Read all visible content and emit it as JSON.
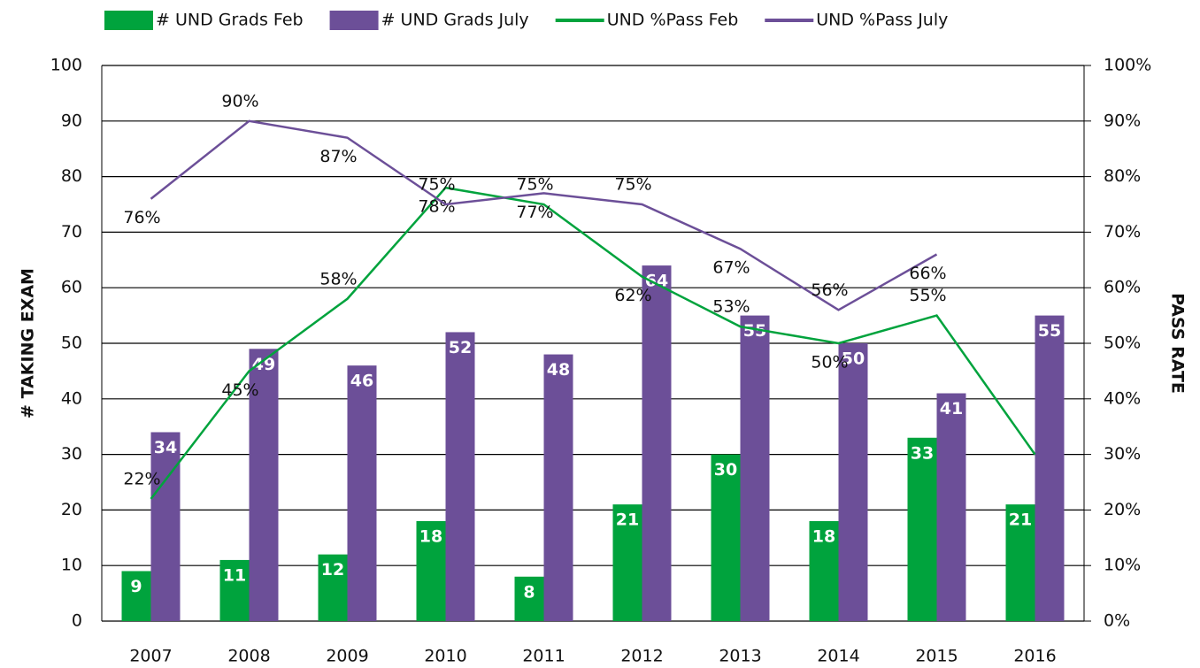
{
  "chart_data": {
    "type": "bar",
    "categories": [
      "2007",
      "2008",
      "2009",
      "2010",
      "2011",
      "2012",
      "2013",
      "2014",
      "2015",
      "2016"
    ],
    "series": [
      {
        "name": "# UND Grads Feb",
        "type": "bar",
        "color": "#00a33d",
        "values": [
          9,
          11,
          12,
          18,
          8,
          21,
          30,
          18,
          33,
          21
        ]
      },
      {
        "name": "# UND Grads July",
        "type": "bar",
        "color": "#6c4f98",
        "values": [
          34,
          49,
          46,
          52,
          48,
          64,
          55,
          50,
          41,
          55
        ]
      },
      {
        "name": "UND %Pass Feb",
        "type": "line",
        "axis": "y2",
        "color": "#00a33d",
        "values": [
          22,
          45,
          58,
          78,
          75,
          62,
          53,
          50,
          55,
          30
        ],
        "value_labels": [
          "22%",
          "45%",
          "58%",
          "78%",
          "75%",
          "62%",
          "53%",
          "50%",
          "55%",
          null
        ]
      },
      {
        "name": "UND %Pass July",
        "type": "line",
        "axis": "y2",
        "color": "#6c4f98",
        "values": [
          76,
          90,
          87,
          75,
          77,
          75,
          67,
          56,
          66,
          null
        ],
        "value_labels": [
          "76%",
          "90%",
          "87%",
          "75%",
          "77%",
          "75%",
          "67%",
          "56%",
          "66%",
          null
        ]
      }
    ],
    "ylabel": "# TAKING EXAM",
    "y2label": "PASS RATE",
    "ylim": [
      0,
      100
    ],
    "yticks": [
      0,
      10,
      20,
      30,
      40,
      50,
      60,
      70,
      80,
      90,
      100
    ],
    "y2lim": [
      0,
      100
    ],
    "y2ticks": [
      {
        "value": 0,
        "label": "0%"
      },
      {
        "value": 10,
        "label": "10%"
      },
      {
        "value": 20,
        "label": "20%"
      },
      {
        "value": 30,
        "label": "30%"
      },
      {
        "value": 40,
        "label": "40%"
      },
      {
        "value": 50,
        "label": "50%"
      },
      {
        "value": 60,
        "label": "60%"
      },
      {
        "value": 70,
        "label": "70%"
      },
      {
        "value": 80,
        "label": "80%"
      },
      {
        "value": 90,
        "label": "90%"
      },
      {
        "value": 100,
        "label": "100%"
      }
    ],
    "grid": true,
    "legend": "top"
  }
}
